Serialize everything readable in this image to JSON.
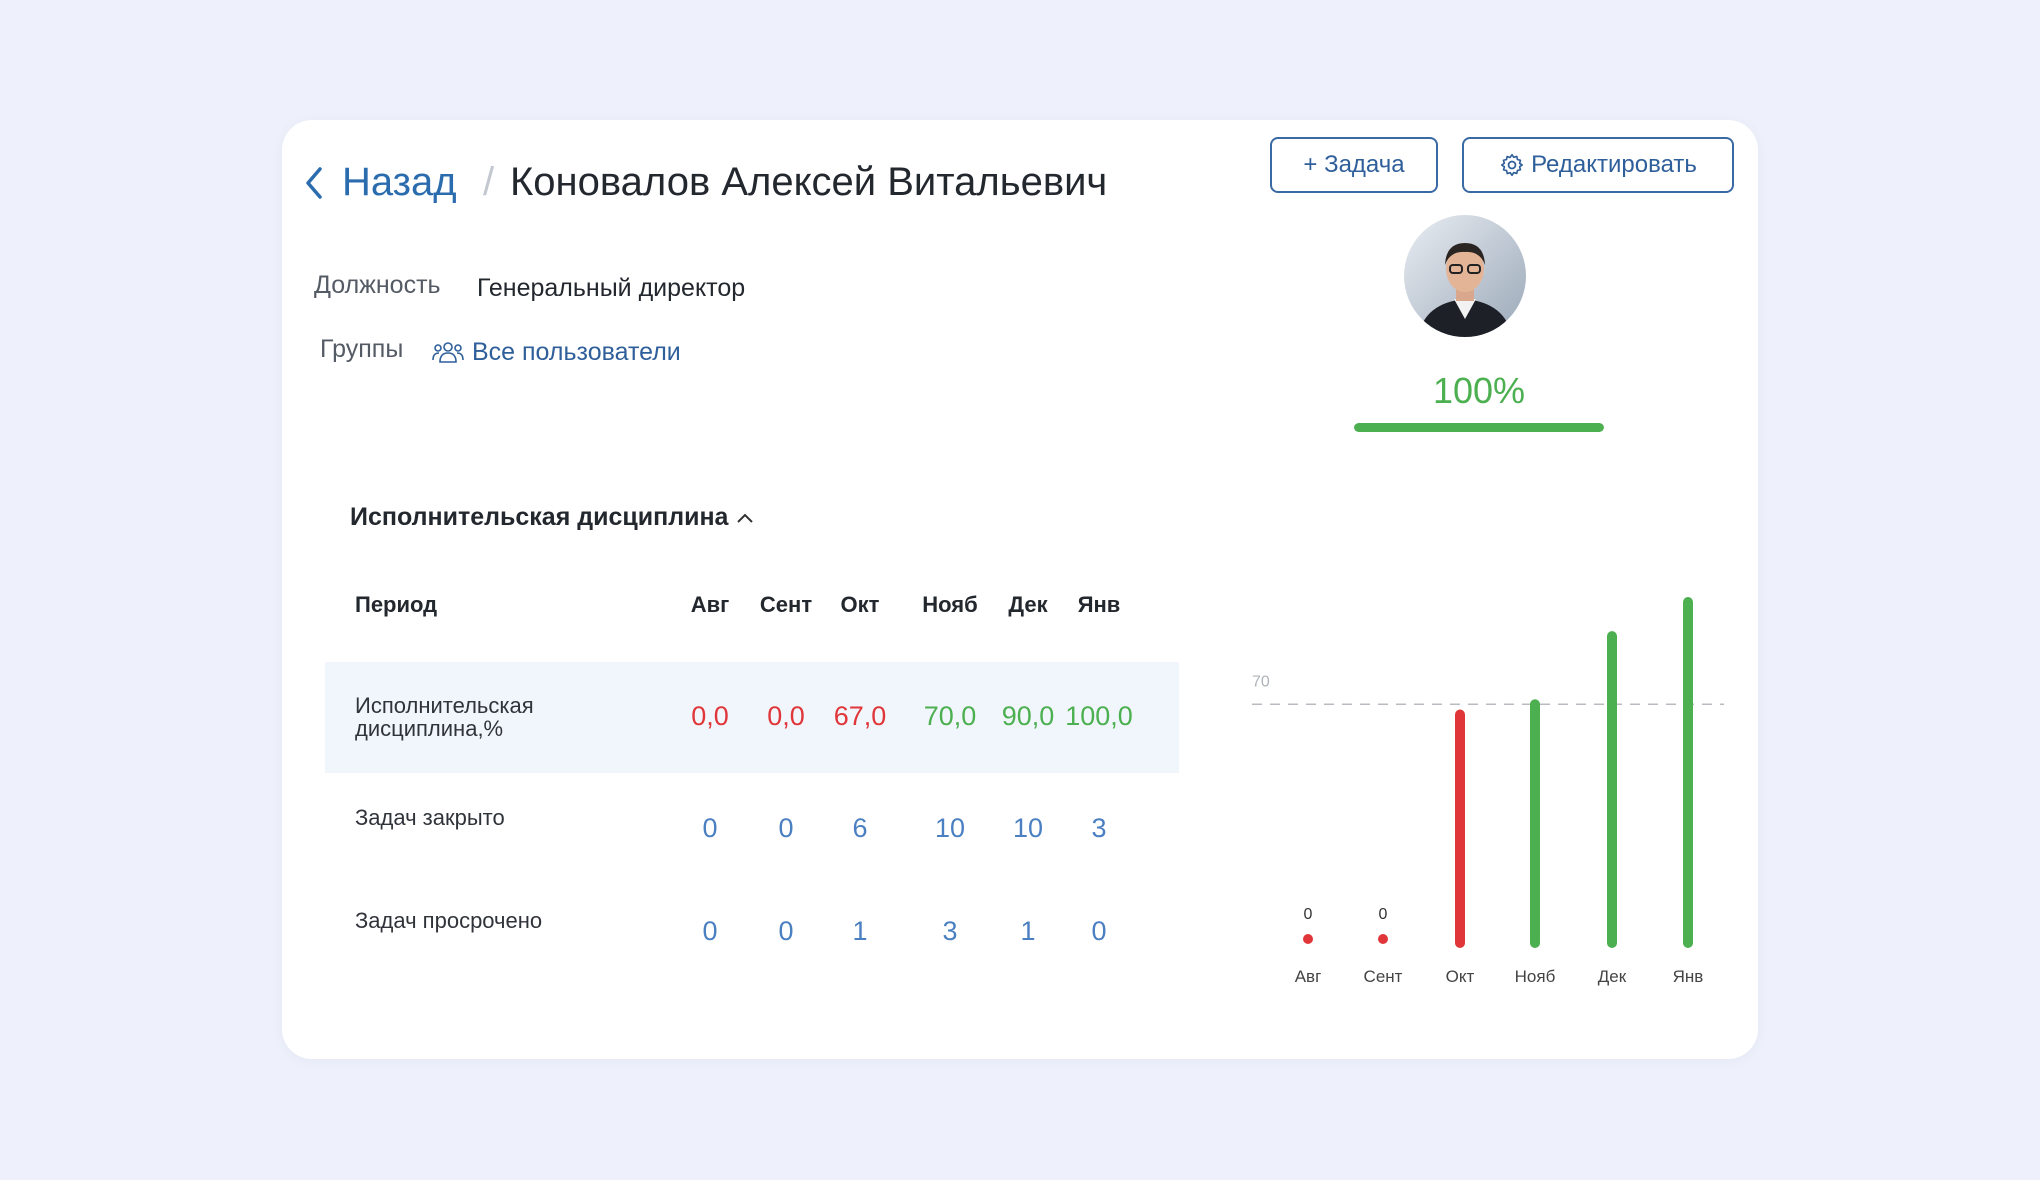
{
  "header": {
    "back": "Назад",
    "separator": "/",
    "name": "Коновалов Алексей Витальевич"
  },
  "buttons": {
    "add_task": "+ Задача",
    "edit": "Редактировать"
  },
  "profile": {
    "completion_label": "100%",
    "completion": 100
  },
  "fields": [
    {
      "label": "Должность",
      "value": "Генеральный директор"
    },
    {
      "label": "Группы",
      "value": "Все пользователи"
    }
  ],
  "section": {
    "title": "Исполнительская дисциплина"
  },
  "table": {
    "header": [
      "Период",
      "Авг",
      "Сент",
      "Окт",
      "Нояб",
      "Дек",
      "Янв"
    ],
    "rows": [
      [
        "Исполнительская дисциплина,%",
        "0,0",
        "0,0",
        "67,0",
        "70,0",
        "90,0",
        "100,0"
      ],
      [
        "Задач закрыто",
        "0",
        "0",
        "6",
        "10",
        "10",
        "3"
      ],
      [
        "Задач просрочено",
        "0",
        "0",
        "1",
        "3",
        "1",
        "0"
      ]
    ]
  },
  "chart_data": {
    "type": "bar",
    "categories": [
      "Авг",
      "Сент",
      "Окт",
      "Нояб",
      "Дек",
      "Янв"
    ],
    "values": [
      0,
      0,
      67,
      70,
      90,
      100
    ],
    "colors": [
      "#e0363a",
      "#e0363a",
      "#e0363a",
      "#4caf50",
      "#4caf50",
      "#4caf50"
    ],
    "ylim": [
      0,
      100
    ],
    "threshold": 70
  }
}
